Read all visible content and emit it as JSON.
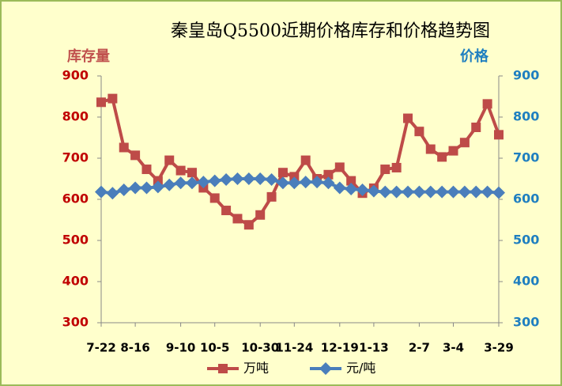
{
  "chart_data": {
    "type": "line",
    "title": "秦皇岛Q5500近期价格库存和价格趋势图",
    "y_label": "库存量",
    "y2_label": "价格",
    "categories": [
      "7-22",
      null,
      null,
      "8-16",
      null,
      null,
      null,
      "9-10",
      null,
      null,
      "10-5",
      null,
      null,
      null,
      "10-30",
      null,
      null,
      "11-24",
      null,
      null,
      null,
      "12-19",
      null,
      null,
      "1-13",
      null,
      null,
      null,
      "2-7",
      null,
      null,
      "3-4",
      null,
      null,
      null,
      "3-29"
    ],
    "series": [
      {
        "name": "万吨",
        "color": "#be4b48",
        "marker": "square",
        "values": [
          836,
          845,
          726,
          707,
          673,
          645,
          695,
          670,
          665,
          628,
          603,
          573,
          553,
          538,
          562,
          606,
          665,
          655,
          695,
          650,
          660,
          678,
          645,
          615,
          627,
          673,
          677,
          797,
          765,
          722,
          703,
          718,
          738,
          775,
          832,
          757
        ]
      },
      {
        "name": "元/吨",
        "color": "#4a7ebb",
        "marker": "diamond",
        "axis": "y2",
        "values": [
          618,
          615,
          623,
          628,
          628,
          630,
          635,
          640,
          640,
          642,
          645,
          648,
          650,
          650,
          650,
          648,
          640,
          640,
          642,
          642,
          640,
          628,
          625,
          623,
          620,
          618,
          618,
          618,
          618,
          618,
          618,
          618,
          618,
          618,
          618,
          616
        ]
      }
    ],
    "ylim": [
      300,
      900
    ],
    "yticks": [
      300,
      400,
      500,
      600,
      700,
      800,
      900
    ],
    "y2lim": [
      300,
      900
    ],
    "y2ticks": [
      300,
      400,
      500,
      600,
      700,
      800,
      900
    ],
    "legend": "bottom"
  }
}
